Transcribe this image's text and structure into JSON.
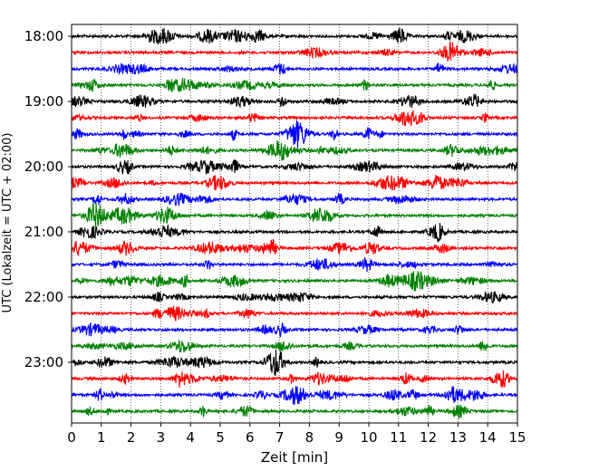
{
  "chart_data": {
    "type": "line",
    "title": "",
    "xlabel": "Zeit  [min]",
    "ylabel": "UTC (Lokalzeit = UTC + 02:00)",
    "xlim": [
      0,
      15
    ],
    "x_ticks": [
      "0",
      "1",
      "2",
      "3",
      "4",
      "5",
      "6",
      "7",
      "8",
      "9",
      "10",
      "11",
      "12",
      "13",
      "14",
      "15"
    ],
    "y_ticks": [
      {
        "label": "18:00",
        "row": 0
      },
      {
        "label": "19:00",
        "row": 4
      },
      {
        "label": "20:00",
        "row": 8
      },
      {
        "label": "21:00",
        "row": 12
      },
      {
        "label": "22:00",
        "row": 16
      },
      {
        "label": "23:00",
        "row": 20
      }
    ],
    "row_interval_minutes": 15,
    "row_count": 24,
    "grid": "vertical dotted",
    "series_colors": [
      "#000000",
      "#ff0000",
      "#0000ff",
      "#008000"
    ]
  }
}
